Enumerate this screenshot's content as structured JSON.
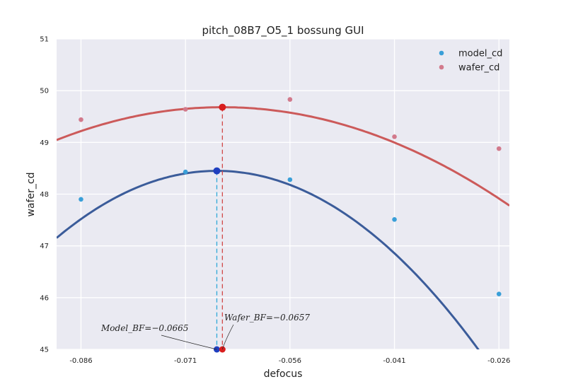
{
  "chart_data": {
    "type": "scatter",
    "title": "pitch_08B7_O5_1 bossung GUI",
    "xlabel": "defocus",
    "ylabel": "wafer_cd",
    "xlim": [
      -0.0895,
      -0.0245
    ],
    "ylim": [
      45,
      51
    ],
    "xticks": [
      -0.086,
      -0.071,
      -0.056,
      -0.041,
      -0.026
    ],
    "xtick_labels": [
      "-0.086",
      "-0.071",
      "-0.056",
      "-0.041",
      "-0.026"
    ],
    "yticks": [
      45,
      46,
      47,
      48,
      49,
      50,
      51
    ],
    "ytick_labels": [
      "45",
      "46",
      "47",
      "48",
      "49",
      "50",
      "51"
    ],
    "grid": true,
    "legend_position": "top-right",
    "series": [
      {
        "name": "model_cd",
        "color": "#3a9fd8",
        "fit_color": "#3b5c9a",
        "marker_color": "#1f3fbf",
        "x": [
          -0.086,
          -0.071,
          -0.056,
          -0.041,
          -0.026
        ],
        "y": [
          47.9,
          48.43,
          48.28,
          47.51,
          46.07
        ],
        "fit": {
          "x0": -0.0665,
          "y0": 48.45,
          "a": -2450
        },
        "best_focus": -0.0665,
        "best_cd": 48.45
      },
      {
        "name": "wafer_cd",
        "color": "#d27a8c",
        "fit_color": "#cc5a5a",
        "marker_color": "#d81e1e",
        "x": [
          -0.086,
          -0.071,
          -0.056,
          -0.041,
          -0.026
        ],
        "y": [
          49.44,
          49.64,
          49.83,
          49.11,
          48.88
        ],
        "fit": {
          "x0": -0.0657,
          "y0": 49.68,
          "a": -1120
        },
        "best_focus": -0.0657,
        "best_cd": 49.68
      }
    ],
    "annotations": [
      {
        "text": "Model_BF=−0.0665",
        "series": 0
      },
      {
        "text": "Wafer_BF=−0.0657",
        "series": 1
      }
    ]
  }
}
